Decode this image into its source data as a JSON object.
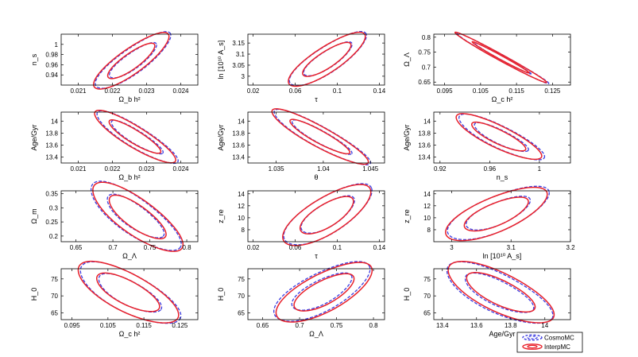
{
  "chart_data": [
    {
      "id": "p1",
      "type": "contour",
      "xlabel": "Ω_b h²",
      "ylabel": "n_s",
      "xlim": [
        0.0205,
        0.0245
      ],
      "ylim": [
        0.92,
        1.02
      ],
      "xticks": [
        "0.021",
        "0.022",
        "0.023",
        "0.024"
      ],
      "xtickvals": [
        0.021,
        0.022,
        0.023,
        0.024
      ],
      "yticks": [
        "0.94",
        "0.96",
        "0.98",
        "1"
      ],
      "ytickvals": [
        0.94,
        0.96,
        0.98,
        1.0
      ],
      "center": [
        0.02255,
        0.967
      ],
      "rx": [
        0.00133,
        0.00083
      ],
      "ry": [
        0.0245,
        0.0155
      ],
      "angle": 0.62,
      "cosmo_offset": [
        5e-05,
        0.001
      ]
    },
    {
      "id": "p2",
      "type": "contour",
      "xlabel": "τ",
      "ylabel": "ln [10¹⁰ A_s]",
      "xlim": [
        0.015,
        0.145
      ],
      "ylim": [
        2.96,
        3.19
      ],
      "xticks": [
        "0.02",
        "0.06",
        "0.1",
        "0.14"
      ],
      "xtickvals": [
        0.02,
        0.06,
        0.1,
        0.14
      ],
      "yticks": [
        "3",
        "3.05",
        "3.1",
        "3.15"
      ],
      "ytickvals": [
        3.0,
        3.05,
        3.1,
        3.15
      ],
      "center": [
        0.09,
        3.075
      ],
      "rx": [
        0.043,
        0.027
      ],
      "ry": [
        0.058,
        0.037
      ],
      "angle": 0.58,
      "cosmo_offset": [
        0.001,
        0.002
      ]
    },
    {
      "id": "p3",
      "type": "contour",
      "xlabel": "Ω_c h²",
      "ylabel": "Ω_Λ",
      "xlim": [
        0.092,
        0.13
      ],
      "ylim": [
        0.64,
        0.81
      ],
      "xticks": [
        "0.095",
        "0.105",
        "0.115",
        "0.125"
      ],
      "xtickvals": [
        0.095,
        0.105,
        0.115,
        0.125
      ],
      "yticks": [
        "0.65",
        "0.7",
        "0.75",
        "0.8"
      ],
      "ytickvals": [
        0.65,
        0.7,
        0.75,
        0.8
      ],
      "center": [
        0.1105,
        0.733
      ],
      "rx": [
        0.0145,
        0.009
      ],
      "ry": [
        0.0105,
        0.0065
      ],
      "angle": -0.5,
      "cosmo_offset": [
        0.0005,
        -0.003
      ]
    },
    {
      "id": "p4",
      "type": "contour",
      "xlabel": "Ω_b h²",
      "ylabel": "Age/Gyr",
      "xlim": [
        0.0205,
        0.0245
      ],
      "ylim": [
        13.3,
        14.15
      ],
      "xticks": [
        "0.021",
        "0.022",
        "0.023",
        "0.024"
      ],
      "xtickvals": [
        0.021,
        0.022,
        0.023,
        0.024
      ],
      "yticks": [
        "13.4",
        "13.6",
        "13.8",
        "14"
      ],
      "ytickvals": [
        13.4,
        13.6,
        13.8,
        14.0
      ],
      "center": [
        0.02265,
        13.74
      ],
      "rx": [
        0.00138,
        0.00088
      ],
      "ry": [
        0.175,
        0.11
      ],
      "angle": -0.55,
      "cosmo_offset": [
        6e-05,
        -0.01
      ]
    },
    {
      "id": "p5",
      "type": "contour",
      "xlabel": "θ",
      "ylabel": "Age/Gyr",
      "xlim": [
        1.032,
        1.0465
      ],
      "ylim": [
        13.3,
        14.15
      ],
      "xticks": [
        "1.035",
        "1.04",
        "1.045"
      ],
      "xtickvals": [
        1.035,
        1.04,
        1.045
      ],
      "yticks": [
        "13.4",
        "13.6",
        "13.8",
        "14"
      ],
      "ytickvals": [
        13.4,
        13.6,
        13.8,
        14.0
      ],
      "center": [
        1.0396,
        13.74
      ],
      "rx": [
        0.0058,
        0.0036
      ],
      "ry": [
        0.17,
        0.105
      ],
      "angle": -0.5,
      "cosmo_offset": [
        0.0002,
        -0.01
      ]
    },
    {
      "id": "p6",
      "type": "contour",
      "xlabel": "n_s",
      "ylabel": "Age/Gyr",
      "xlim": [
        0.915,
        1.025
      ],
      "ylim": [
        13.3,
        14.15
      ],
      "xticks": [
        "0.92",
        "0.96",
        "1"
      ],
      "xtickvals": [
        0.92,
        0.96,
        1.0
      ],
      "yticks": [
        "13.4",
        "13.6",
        "13.8",
        "14"
      ],
      "ytickvals": [
        13.4,
        13.6,
        13.8,
        14.0
      ],
      "center": [
        0.967,
        13.74
      ],
      "rx": [
        0.038,
        0.024
      ],
      "ry": [
        0.185,
        0.115
      ],
      "angle": -0.45,
      "cosmo_offset": [
        0.002,
        -0.01
      ]
    },
    {
      "id": "p7",
      "type": "contour",
      "xlabel": "Ω_Λ",
      "ylabel": "Ω_m",
      "xlim": [
        0.63,
        0.815
      ],
      "ylim": [
        0.18,
        0.36
      ],
      "xticks": [
        "0.65",
        "0.7",
        "0.75",
        "0.8"
      ],
      "xtickvals": [
        0.65,
        0.7,
        0.75,
        0.8
      ],
      "yticks": [
        "0.2",
        "0.25",
        "0.3",
        "0.35"
      ],
      "ytickvals": [
        0.2,
        0.25,
        0.3,
        0.35
      ],
      "center": [
        0.733,
        0.267
      ],
      "rx": [
        0.073,
        0.046
      ],
      "ry": [
        0.063,
        0.04
      ],
      "angle": -0.62,
      "cosmo_offset": [
        -0.003,
        0.003
      ]
    },
    {
      "id": "p8",
      "type": "contour",
      "xlabel": "τ",
      "ylabel": "z_re",
      "xlim": [
        0.015,
        0.145
      ],
      "ylim": [
        6,
        14.5
      ],
      "xticks": [
        "0.02",
        "0.06",
        "0.1",
        "0.14"
      ],
      "xtickvals": [
        0.02,
        0.06,
        0.1,
        0.14
      ],
      "yticks": [
        "8",
        "10",
        "12",
        "14"
      ],
      "ytickvals": [
        8,
        10,
        12,
        14
      ],
      "center": [
        0.09,
        10.4
      ],
      "rx": [
        0.048,
        0.029
      ],
      "ry": [
        3.0,
        1.9
      ],
      "angle": 0.55,
      "cosmo_offset": [
        0.001,
        0.1
      ]
    },
    {
      "id": "p9",
      "type": "contour",
      "xlabel": "ln [10¹⁰ A_s]",
      "ylabel": "z_re",
      "xlim": [
        2.97,
        3.2
      ],
      "ylim": [
        6,
        14.5
      ],
      "xticks": [
        "3",
        "3.1",
        "3.2"
      ],
      "xtickvals": [
        3.0,
        3.1,
        3.2
      ],
      "yticks": [
        "8",
        "10",
        "12",
        "14"
      ],
      "ytickvals": [
        8,
        10,
        12,
        14
      ],
      "center": [
        3.075,
        10.6
      ],
      "rx": [
        0.092,
        0.058
      ],
      "ry": [
        2.9,
        1.85
      ],
      "angle": 0.4,
      "cosmo_offset": [
        0.003,
        0.15
      ]
    },
    {
      "id": "p10",
      "type": "contour",
      "xlabel": "Ω_c h²",
      "ylabel": "H_0",
      "xlim": [
        0.092,
        0.13
      ],
      "ylim": [
        63,
        78
      ],
      "xticks": [
        "0.095",
        "0.105",
        "0.115",
        "0.125"
      ],
      "xtickvals": [
        0.095,
        0.105,
        0.115,
        0.125
      ],
      "yticks": [
        "65",
        "70",
        "75"
      ],
      "ytickvals": [
        65,
        70,
        75
      ],
      "center": [
        0.1105,
        71.0
      ],
      "rx": [
        0.0155,
        0.0097
      ],
      "ry": [
        5.6,
        3.5
      ],
      "angle": -0.48,
      "cosmo_offset": [
        0.0005,
        -0.2
      ]
    },
    {
      "id": "p11",
      "type": "contour",
      "xlabel": "Ω_Λ",
      "ylabel": "H_0",
      "xlim": [
        0.63,
        0.815
      ],
      "ylim": [
        63,
        78
      ],
      "xticks": [
        "0.65",
        "0.7",
        "0.75",
        "0.8"
      ],
      "xtickvals": [
        0.65,
        0.7,
        0.75,
        0.8
      ],
      "yticks": [
        "65",
        "70",
        "75"
      ],
      "ytickvals": [
        65,
        70,
        75
      ],
      "center": [
        0.733,
        71.0
      ],
      "rx": [
        0.072,
        0.045
      ],
      "ry": [
        5.6,
        3.5
      ],
      "angle": 0.48,
      "cosmo_offset": [
        -0.003,
        0.2
      ]
    },
    {
      "id": "p12",
      "type": "contour",
      "xlabel": "Age/Gyr",
      "ylabel": "H_0",
      "xlim": [
        13.35,
        14.15
      ],
      "ylim": [
        63,
        78
      ],
      "xticks": [
        "13.4",
        "13.6",
        "13.8",
        "14"
      ],
      "xtickvals": [
        13.4,
        13.6,
        13.8,
        14.0
      ],
      "yticks": [
        "65",
        "70",
        "75"
      ],
      "ytickvals": [
        65,
        70,
        75
      ],
      "center": [
        13.74,
        71.0
      ],
      "rx": [
        0.34,
        0.22
      ],
      "ry": [
        5.7,
        3.6
      ],
      "angle": -0.45,
      "cosmo_offset": [
        -0.01,
        -0.2
      ]
    }
  ],
  "legend": {
    "position": "bottom-right",
    "entries": [
      {
        "name": "CosmoMC",
        "color": "#3b3be0",
        "style": "dashed"
      },
      {
        "name": "InterpMC",
        "color": "#e8202a",
        "style": "solid"
      }
    ]
  },
  "colors": {
    "cosmomc": "#3b3be0",
    "interpmc": "#e8202a",
    "axis": "#000000"
  }
}
